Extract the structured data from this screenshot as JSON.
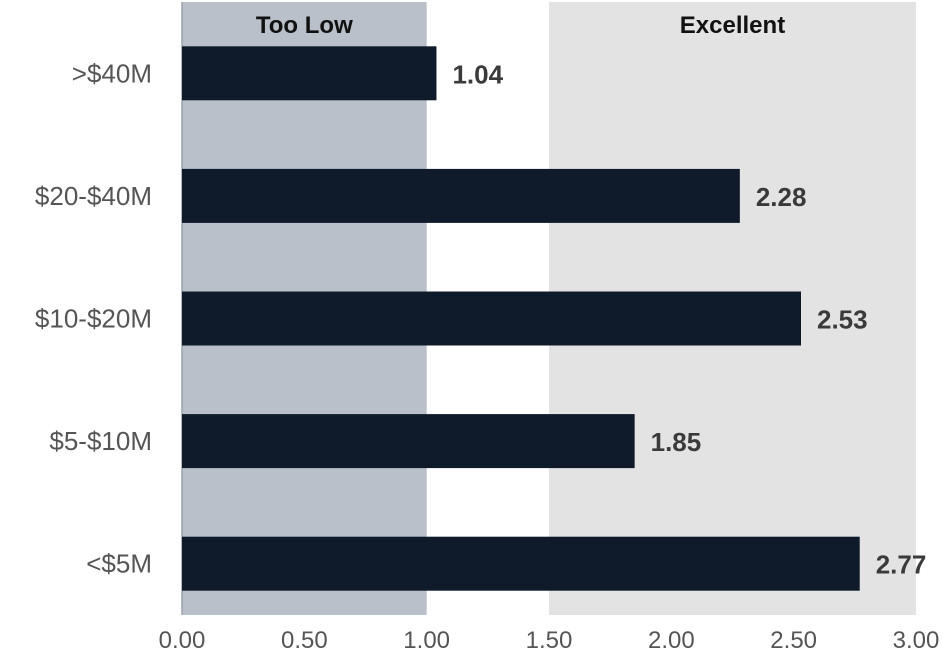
{
  "chart_data": {
    "type": "bar",
    "orientation": "horizontal",
    "categories": [
      ">$40M",
      "$20-$40M",
      "$10-$20M",
      "$5-$10M",
      "<$5M"
    ],
    "values": [
      1.04,
      2.28,
      2.53,
      1.85,
      2.77
    ],
    "value_labels": [
      "1.04",
      "2.28",
      "2.53",
      "1.85",
      "2.77"
    ],
    "xlim": [
      0,
      3
    ],
    "ticks": [
      "0.00",
      "0.50",
      "1.00",
      "1.50",
      "2.00",
      "2.50",
      "3.00"
    ],
    "tick_values": [
      0,
      0.5,
      1,
      1.5,
      2,
      2.5,
      3
    ],
    "bands": [
      {
        "label": "Too Low",
        "from": 0,
        "to": 1.0,
        "color": "#b9c0c9"
      },
      {
        "label": "Excellent",
        "from": 1.5,
        "to": 3.0,
        "color": "#e3e3e3"
      }
    ],
    "bar_color": "#0f1a2b",
    "grid": false,
    "legend": "none"
  }
}
